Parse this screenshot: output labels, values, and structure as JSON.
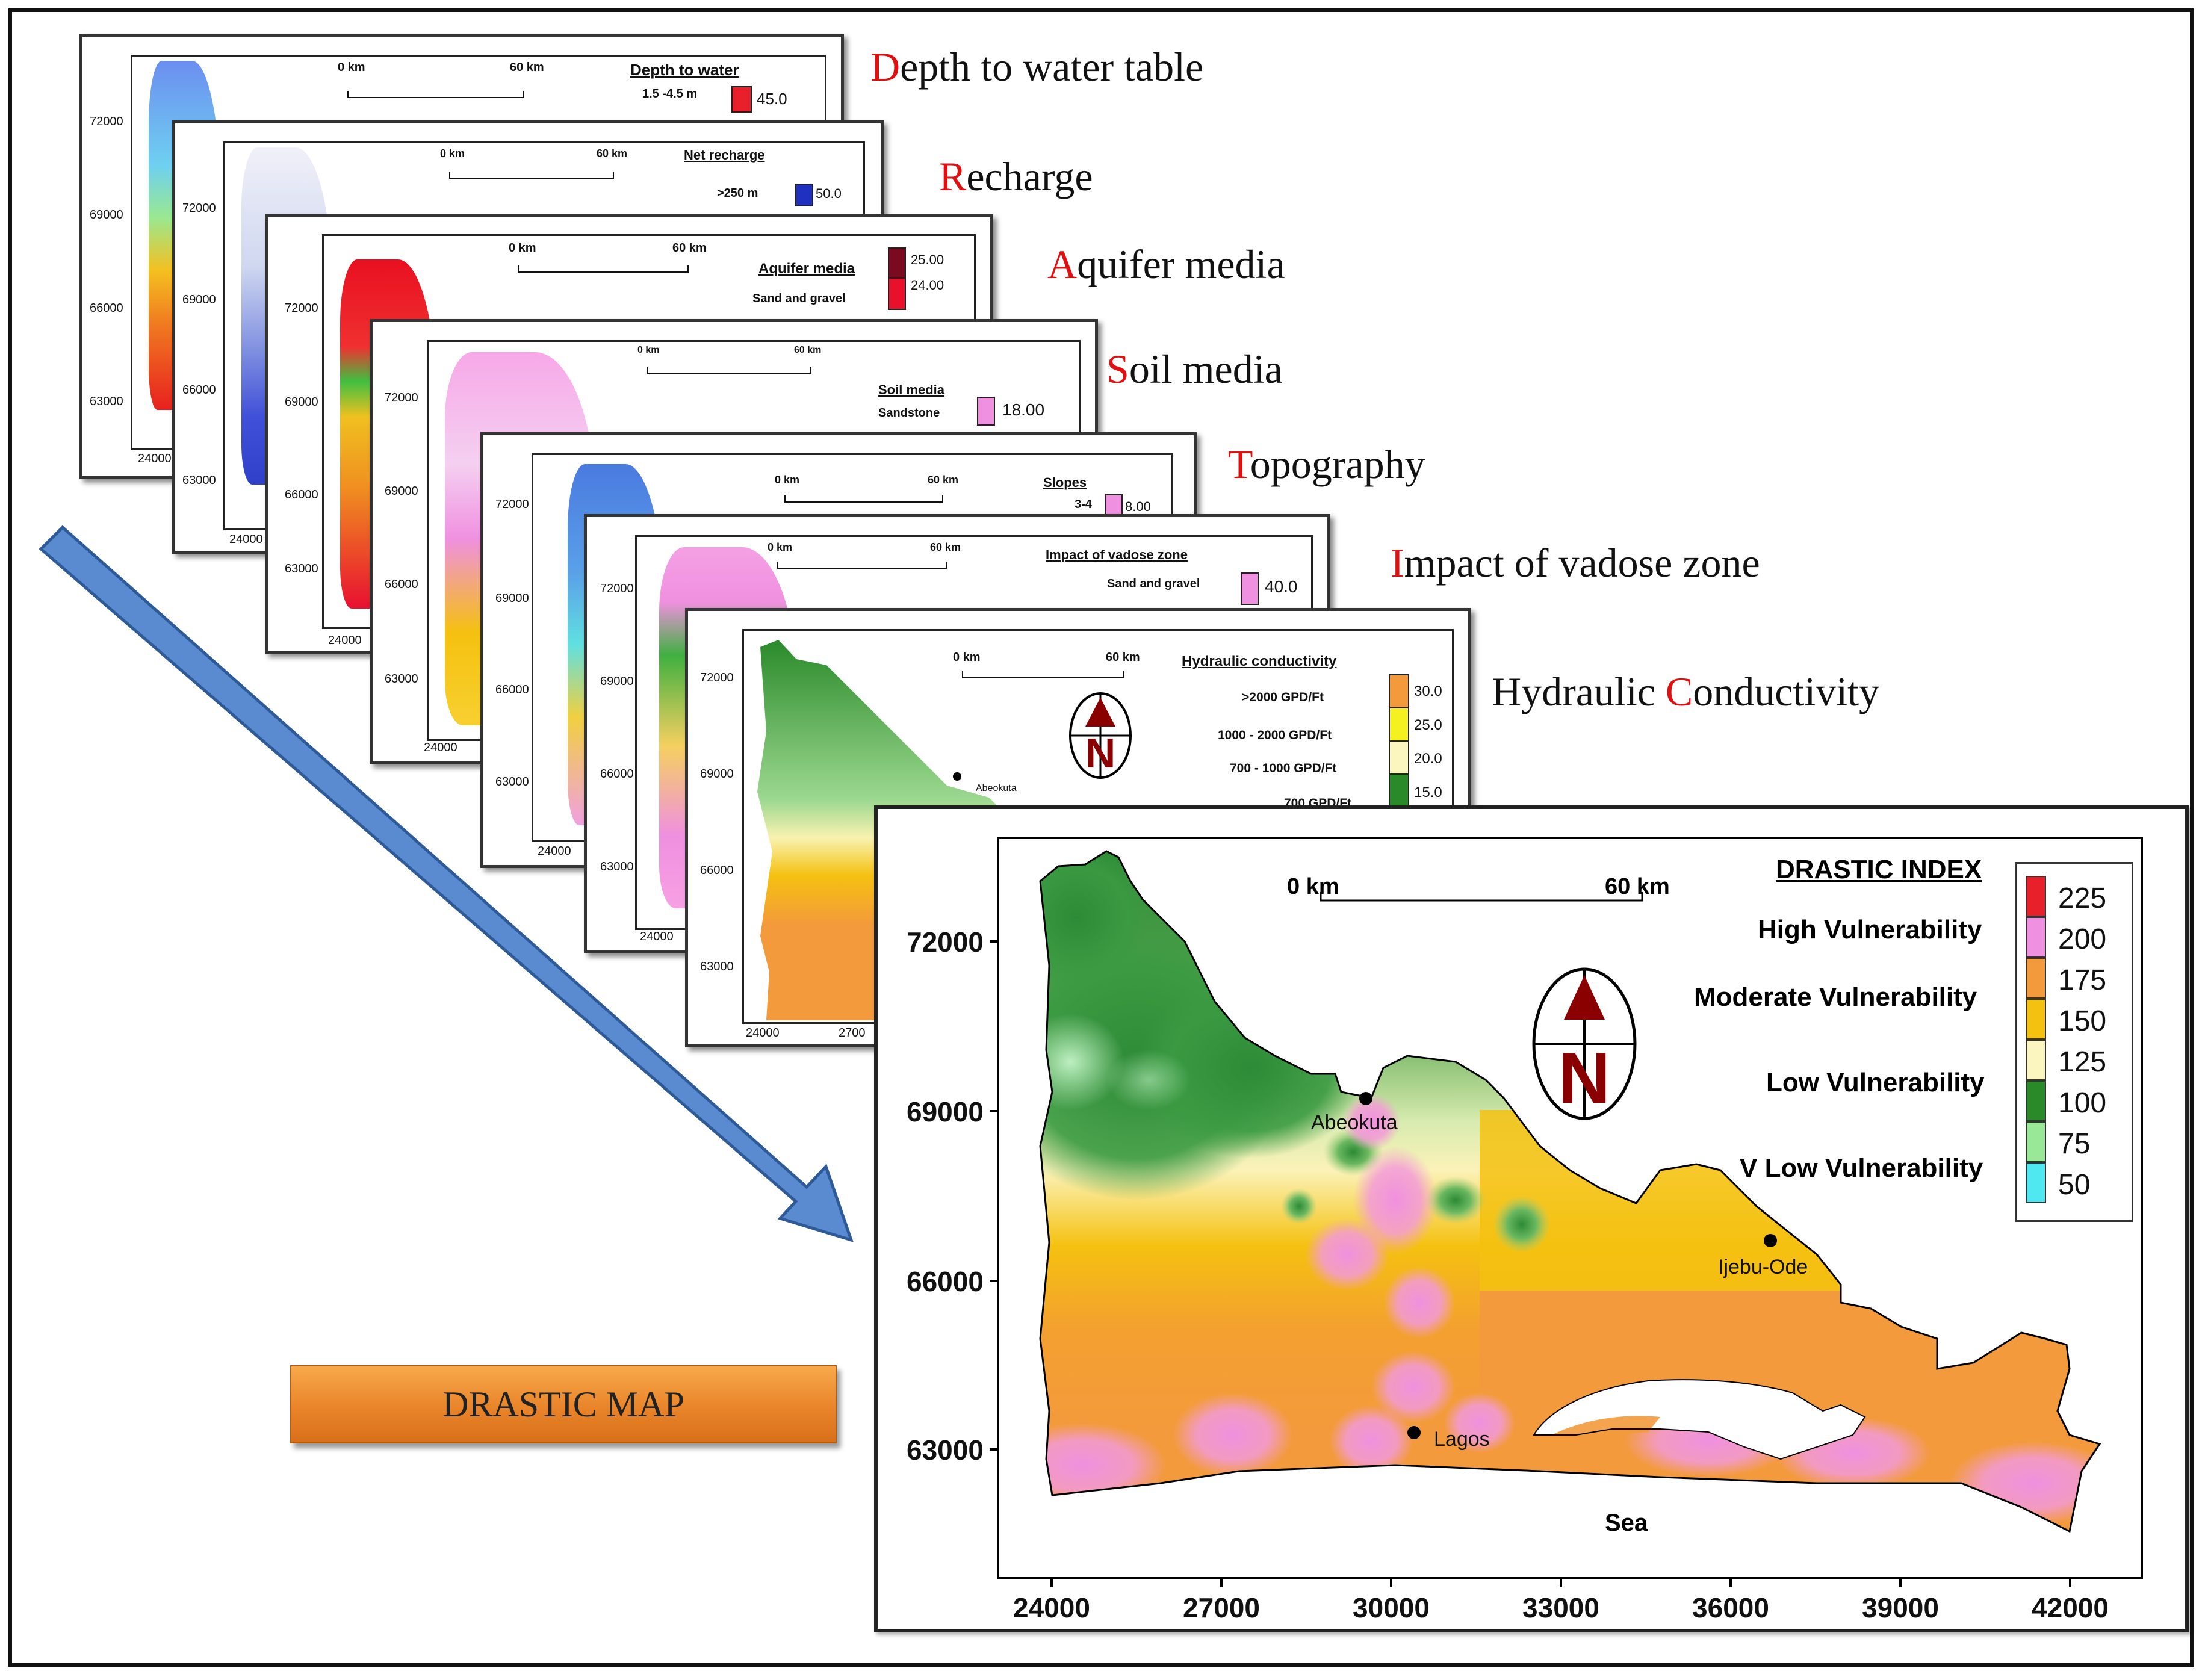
{
  "layers": [
    {
      "label_initial": "D",
      "label_rest": "epth to water table",
      "legend_title": "Depth to water",
      "legend_class": "1.5 -4.5 m",
      "legend_value": "45.0",
      "color": "#e8202a"
    },
    {
      "label_initial": "R",
      "label_rest": "echarge",
      "legend_title": "Net recharge",
      "legend_class": ">250 m",
      "legend_value": "50.0",
      "color": "#2030c0"
    },
    {
      "label_initial": "A",
      "label_rest": "quifer media",
      "legend_title": "Aquifer media",
      "legend_class": "Sand and gravel",
      "legend_values": [
        "25.00",
        "24.00"
      ],
      "color": "#7a0a20"
    },
    {
      "label_initial": "S",
      "label_rest": "oil media",
      "legend_title": "Soil media",
      "legend_class": "Sandstone",
      "legend_value": "18.00",
      "color": "#f090e0"
    },
    {
      "label_initial": "T",
      "label_rest": "opography",
      "legend_title": "Slopes",
      "legend_class": "3-4",
      "legend_value": "8.00",
      "color": "#f090e0"
    },
    {
      "label_initial": "I",
      "label_rest": "mpact of vadose zone",
      "legend_title": "Impact of vadose zone",
      "legend_class": "Sand and gravel",
      "legend_value": "40.0",
      "color": "#f090e0"
    },
    {
      "label_pre": "Hydraulic ",
      "label_initial": "C",
      "label_rest": "onductivity",
      "legend_title": "Hydraulic conductivity",
      "legend_classes": [
        ">2000 GPD/Ft",
        "1000 - 2000 GPD/Ft",
        "700 - 1000 GPD/Ft",
        "700 GPD/Ft"
      ],
      "legend_values": [
        "30.0",
        "25.0",
        "20.0",
        "15.0"
      ],
      "place": "Abeokuta"
    }
  ],
  "sheet_scale": {
    "start": "0 km",
    "end": "60 km"
  },
  "sheet_ticks": {
    "x": "24000",
    "x2": "2700",
    "y": [
      "72000",
      "69000",
      "66000",
      "63000"
    ]
  },
  "button_label": "DRASTIC MAP",
  "main_map": {
    "scale_start": "0 km",
    "scale_end": "60 km",
    "y_ticks": [
      "72000",
      "69000",
      "66000",
      "63000"
    ],
    "x_ticks": [
      "24000",
      "27000",
      "30000",
      "33000",
      "36000",
      "39000",
      "42000"
    ],
    "places": {
      "abeokuta": "Abeokuta",
      "ijebu": "Ijebu-Ode",
      "lagos": "Lagos",
      "sea": "Sea"
    },
    "legend": {
      "title": "DRASTIC INDEX",
      "classes": [
        "High Vulnerability",
        "Moderate Vulnerability",
        "Low Vulnerability",
        "V Low Vulnerability"
      ],
      "values": [
        "225",
        "200",
        "175",
        "150",
        "125",
        "100",
        "75",
        "50"
      ],
      "colors": [
        "#e8202a",
        "#f090e0",
        "#f39a3c",
        "#f5c110",
        "#fbf6c0",
        "#2a8a2a",
        "#98e898",
        "#4fe8f0"
      ]
    },
    "colors": {
      "dark_green": "#2d8a36",
      "light_green": "#b9e3a5",
      "cream": "#fbf2b8",
      "yellow": "#f5c110",
      "orange": "#f39a3c",
      "pink": "#f090e0"
    }
  }
}
